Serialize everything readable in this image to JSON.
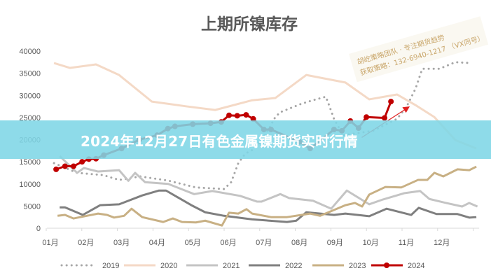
{
  "banner": {
    "text": "2024年12月27日有色金属镍期货实时行情"
  },
  "watermark": {
    "line1": "胡屹策略团队 · 专注期货趋势",
    "line2": "获取策略：132-6940-1217 （VX同号）"
  },
  "chart_data": {
    "type": "line",
    "title": "上期所镍库存",
    "xlabel": "",
    "ylabel": "",
    "x_unit": "month index (0 = 01月)",
    "x_ticks": [
      "01月",
      "02月",
      "03月",
      "04月",
      "05月",
      "06月",
      "07月",
      "08月",
      "09月",
      "10月",
      "11月",
      "12月"
    ],
    "y_ticks": [
      0,
      5000,
      10000,
      15000,
      20000,
      25000,
      30000,
      35000,
      40000
    ],
    "ylim": [
      0,
      40000
    ],
    "xlim": [
      -0.1,
      12.05
    ],
    "grid": false,
    "legend_position": "bottom",
    "series": [
      {
        "name": "2019",
        "style": "dotted",
        "color": "#a6a6a6",
        "points": [
          [
            0.1,
            14700
          ],
          [
            0.75,
            12500
          ],
          [
            1.48,
            12000
          ],
          [
            1.93,
            10900
          ],
          [
            2.52,
            11700
          ],
          [
            3.31,
            10750
          ],
          [
            4.09,
            9200
          ],
          [
            4.88,
            8850
          ],
          [
            5.08,
            10400
          ],
          [
            5.28,
            14700
          ],
          [
            5.47,
            16800
          ],
          [
            5.73,
            17900
          ],
          [
            6.0,
            20500
          ],
          [
            6.32,
            25100
          ],
          [
            6.46,
            26200
          ],
          [
            6.71,
            27000
          ],
          [
            7.05,
            28100
          ],
          [
            7.38,
            28900
          ],
          [
            7.74,
            29700
          ],
          [
            7.83,
            27800
          ],
          [
            7.97,
            24700
          ],
          [
            8.23,
            21000
          ],
          [
            9.07,
            22000
          ],
          [
            9.74,
            24700
          ],
          [
            10.0,
            27300
          ],
          [
            10.26,
            31500
          ],
          [
            10.45,
            36000
          ],
          [
            10.93,
            36000
          ],
          [
            11.38,
            37500
          ],
          [
            11.83,
            37300
          ]
        ]
      },
      {
        "name": "2020",
        "style": "solid",
        "color": "#f4d9c6",
        "points": [
          [
            0.1,
            37300
          ],
          [
            0.55,
            36200
          ],
          [
            1.28,
            37000
          ],
          [
            1.93,
            34600
          ],
          [
            2.85,
            28600
          ],
          [
            3.84,
            27500
          ],
          [
            4.63,
            26700
          ],
          [
            5.67,
            28900
          ],
          [
            6.32,
            29400
          ],
          [
            7.19,
            34600
          ],
          [
            8.29,
            32900
          ],
          [
            8.96,
            29100
          ],
          [
            9.74,
            30200
          ],
          [
            10.26,
            27800
          ],
          [
            10.79,
            25100
          ],
          [
            11.38,
            19900
          ],
          [
            11.97,
            18000
          ]
        ]
      },
      {
        "name": "2021",
        "style": "solid",
        "color": "#c4c4c4",
        "points": [
          [
            0.26,
            16300
          ],
          [
            0.75,
            12500
          ],
          [
            0.94,
            13600
          ],
          [
            1.34,
            12800
          ],
          [
            1.93,
            13100
          ],
          [
            2.19,
            10700
          ],
          [
            2.38,
            12500
          ],
          [
            2.66,
            10400
          ],
          [
            3.31,
            10000
          ],
          [
            4.04,
            7700
          ],
          [
            4.55,
            8400
          ],
          [
            5.33,
            7300
          ],
          [
            5.81,
            6000
          ],
          [
            5.93,
            6000
          ],
          [
            6.46,
            7700
          ],
          [
            6.71,
            6800
          ],
          [
            7.38,
            6200
          ],
          [
            7.89,
            4400
          ],
          [
            8.33,
            8500
          ],
          [
            8.96,
            5400
          ],
          [
            9.35,
            6500
          ],
          [
            9.94,
            7900
          ],
          [
            10.39,
            8400
          ],
          [
            10.65,
            6600
          ],
          [
            11.12,
            5700
          ],
          [
            11.57,
            4900
          ],
          [
            11.77,
            5700
          ],
          [
            12.0,
            4900
          ]
        ]
      },
      {
        "name": "2022",
        "style": "solid",
        "color": "#7f7f7f",
        "points": [
          [
            0.26,
            4700
          ],
          [
            0.41,
            4700
          ],
          [
            0.91,
            3000
          ],
          [
            1.4,
            5200
          ],
          [
            1.93,
            5400
          ],
          [
            2.58,
            7400
          ],
          [
            3.05,
            8500
          ],
          [
            3.25,
            8500
          ],
          [
            3.96,
            5200
          ],
          [
            4.35,
            3600
          ],
          [
            4.88,
            2800
          ],
          [
            5.67,
            2000
          ],
          [
            6.65,
            1400
          ],
          [
            6.91,
            1700
          ],
          [
            7.19,
            3600
          ],
          [
            7.97,
            3000
          ],
          [
            8.29,
            3300
          ],
          [
            8.96,
            2700
          ],
          [
            9.45,
            4400
          ],
          [
            10.14,
            3000
          ],
          [
            10.35,
            4600
          ],
          [
            10.85,
            3200
          ],
          [
            11.44,
            3200
          ],
          [
            11.77,
            2400
          ],
          [
            11.97,
            2500
          ]
        ]
      },
      {
        "name": "2023",
        "style": "solid",
        "color": "#c8b084",
        "points": [
          [
            0.2,
            2800
          ],
          [
            0.41,
            3000
          ],
          [
            0.65,
            2200
          ],
          [
            1.34,
            3300
          ],
          [
            1.59,
            3000
          ],
          [
            1.79,
            2400
          ],
          [
            2.07,
            2800
          ],
          [
            2.28,
            4400
          ],
          [
            2.58,
            2500
          ],
          [
            3.17,
            1400
          ],
          [
            3.44,
            2200
          ],
          [
            3.7,
            1400
          ],
          [
            4.09,
            1300
          ],
          [
            4.35,
            1700
          ],
          [
            4.82,
            600
          ],
          [
            5.02,
            3500
          ],
          [
            5.28,
            3300
          ],
          [
            5.51,
            4300
          ],
          [
            5.67,
            3300
          ],
          [
            6.2,
            2500
          ],
          [
            6.65,
            2500
          ],
          [
            7.3,
            3300
          ],
          [
            7.58,
            2800
          ],
          [
            8.29,
            5200
          ],
          [
            8.56,
            5700
          ],
          [
            8.76,
            4900
          ],
          [
            8.96,
            7600
          ],
          [
            9.41,
            9300
          ],
          [
            9.86,
            9200
          ],
          [
            10.33,
            10900
          ],
          [
            10.59,
            10900
          ],
          [
            10.79,
            12500
          ],
          [
            11.04,
            11700
          ],
          [
            11.44,
            13300
          ],
          [
            11.77,
            13100
          ],
          [
            11.97,
            13900
          ]
        ]
      },
      {
        "name": "2024",
        "style": "solid-marker",
        "color": "#c00000",
        "points": [
          [
            0.16,
            13300
          ],
          [
            0.41,
            14000
          ],
          [
            0.65,
            14000
          ],
          [
            0.89,
            15000
          ],
          [
            1.08,
            15600
          ],
          [
            1.28,
            15700
          ],
          [
            1.5,
            16500
          ],
          [
            2.0,
            18000
          ],
          [
            2.5,
            20000
          ],
          [
            3.0,
            21000
          ],
          [
            3.3,
            22500
          ],
          [
            3.5,
            23000
          ],
          [
            4.0,
            23500
          ],
          [
            4.5,
            23700
          ],
          [
            4.8,
            24000
          ],
          [
            5.02,
            25500
          ],
          [
            5.25,
            25400
          ],
          [
            5.5,
            25600
          ],
          [
            5.7,
            24700
          ],
          [
            6.0,
            22300
          ],
          [
            6.2,
            22300
          ],
          [
            7.0,
            19500
          ],
          [
            7.3,
            18000
          ],
          [
            7.97,
            22300
          ],
          [
            8.19,
            22000
          ],
          [
            8.43,
            24200
          ],
          [
            8.66,
            22600
          ],
          [
            8.88,
            25100
          ],
          [
            9.39,
            24900
          ],
          [
            9.57,
            28600
          ]
        ]
      }
    ],
    "annotations": [
      {
        "type": "arrow",
        "color": "#e02020",
        "from": [
          8.75,
          20500
        ],
        "to": [
          10.06,
          27300
        ]
      }
    ]
  }
}
